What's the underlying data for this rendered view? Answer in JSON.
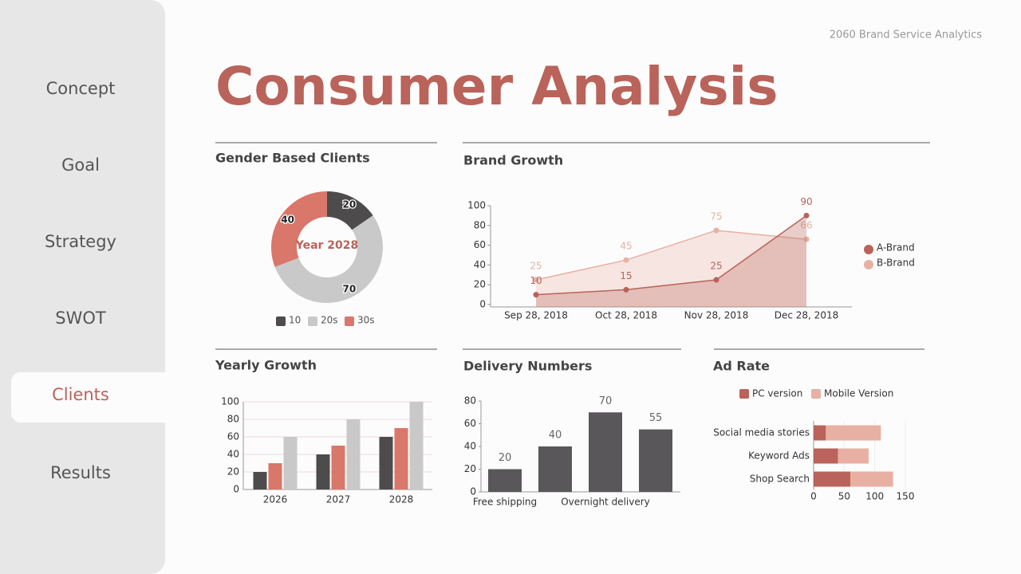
{
  "header": "2060 Brand Service Analytics",
  "title": "Consumer Analysis",
  "nav": {
    "items": [
      "Concept",
      "Goal",
      "Strategy",
      "SWOT",
      "Clients",
      "Results"
    ],
    "active": "Clients"
  },
  "chart_data": [
    {
      "type": "donut",
      "title": "Gender Based Clients",
      "center_label": "Year 2028",
      "categories": [
        "10",
        "20s",
        "30s"
      ],
      "values": [
        20,
        70,
        40
      ],
      "colors": [
        "#4d4b4c",
        "#c9c9c9",
        "#d9776a"
      ]
    },
    {
      "type": "area",
      "title": "Brand Growth",
      "categories": [
        "Sep 28, 2018",
        "Oct 28, 2018",
        "Nov 28, 2018",
        "Dec 28, 2018"
      ],
      "series": [
        {
          "name": "A-Brand",
          "color": "#b9635a",
          "values": [
            10,
            15,
            25,
            90
          ]
        },
        {
          "name": "B-Brand",
          "color": "#e8b0a3",
          "values": [
            25,
            45,
            75,
            66
          ]
        }
      ],
      "ylim": [
        0,
        100
      ],
      "yticks": [
        0,
        20,
        40,
        60,
        80,
        100
      ],
      "legend": "right"
    },
    {
      "type": "bar",
      "title": "Yearly Growth",
      "categories": [
        "2026",
        "2027",
        "2028"
      ],
      "series": [
        {
          "color": "#4d4b4c",
          "values": [
            20,
            40,
            60
          ]
        },
        {
          "color": "#d9776a",
          "values": [
            30,
            50,
            70
          ]
        },
        {
          "color": "#c9c9c9",
          "values": [
            60,
            80,
            100
          ]
        }
      ],
      "ylim": [
        0,
        100
      ],
      "yticks": [
        0,
        20,
        40,
        60,
        80,
        100
      ],
      "grid": true
    },
    {
      "type": "bar",
      "title": "Delivery Numbers",
      "categories": [
        "Free shipping",
        null,
        "Overnight delivery",
        null
      ],
      "series": [
        {
          "color": "#59575a",
          "values": [
            20,
            40,
            70,
            55
          ]
        }
      ],
      "ylim": [
        0,
        80
      ],
      "yticks": [
        0,
        20,
        40,
        60,
        80
      ],
      "grid": false,
      "value_labels": true
    },
    {
      "type": "stacked-hbar",
      "title": "Ad Rate",
      "categories": [
        "Social media stories",
        "Keyword Ads",
        "Shop Search"
      ],
      "series": [
        {
          "name": "PC version",
          "color": "#b9635a",
          "values": [
            20,
            40,
            60
          ]
        },
        {
          "name": "Mobile Version",
          "color": "#e8b0a3",
          "values": [
            90,
            50,
            70
          ]
        }
      ],
      "xlim": [
        0,
        150
      ],
      "xticks": [
        0,
        50,
        100,
        150
      ],
      "legend": "top"
    }
  ]
}
